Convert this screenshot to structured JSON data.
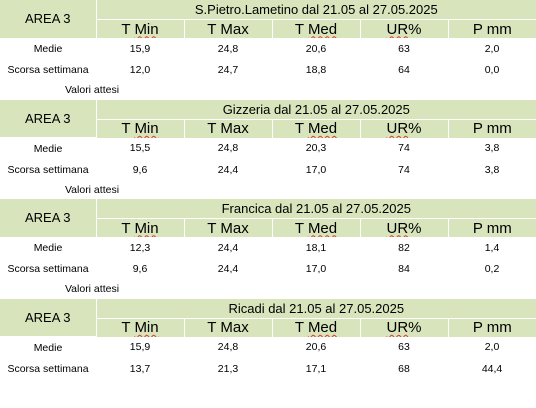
{
  "headers": [
    "T Min",
    "T Max",
    "T Med",
    "UR%",
    "P mm"
  ],
  "row_labels": {
    "current": "Medie",
    "previous": "Scorsa settimana",
    "expected": "Valori attesi"
  },
  "stations": [
    {
      "area": "AREA 3",
      "title": "S.Pietro.Lametino dal 21.05 al 27.05.2025",
      "medie": [
        "15,9",
        "24,8",
        "20,6",
        "63",
        "2,0"
      ],
      "scorsa": [
        "12,0",
        "24,7",
        "18,8",
        "64",
        "0,0"
      ]
    },
    {
      "area": "AREA 3",
      "title": "Gizzeria dal 21.05 al 27.05.2025",
      "medie": [
        "15,5",
        "24,8",
        "20,3",
        "74",
        "3,8"
      ],
      "scorsa": [
        "9,6",
        "24,4",
        "17,0",
        "74",
        "3,8"
      ]
    },
    {
      "area": "AREA 3",
      "title": "Francica dal 21.05 al 27.05.2025",
      "medie": [
        "12,3",
        "24,4",
        "18,1",
        "82",
        "1,4"
      ],
      "scorsa": [
        "9,6",
        "24,4",
        "17,0",
        "84",
        "0,2"
      ]
    },
    {
      "area": "AREA 3",
      "title": "Ricadi  dal 21.05 al 27.05.2025",
      "medie": [
        "15,9",
        "24,8",
        "20,6",
        "63",
        "2,0"
      ],
      "scorsa": [
        "13,7",
        "21,3",
        "17,1",
        "68",
        "44,4"
      ]
    }
  ]
}
